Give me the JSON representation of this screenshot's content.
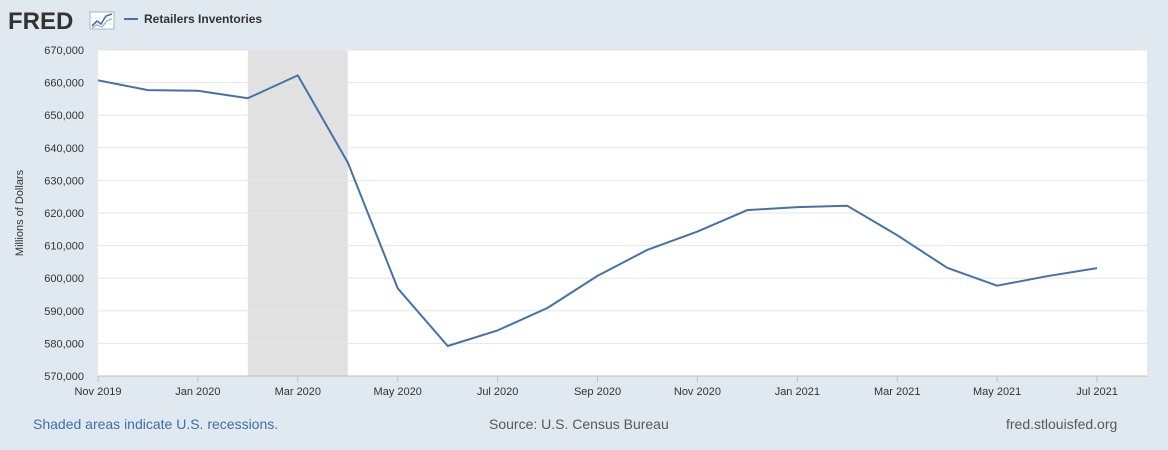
{
  "header": {
    "logo_text": "FRED",
    "legend_label": "Retailers Inventories"
  },
  "footer": {
    "recession_note": "Shaded areas indicate U.S. recessions.",
    "source": "Source: U.S. Census Bureau",
    "site": "fred.stlouisfed.org"
  },
  "colors": {
    "series": "#4572a7",
    "recession": "#e1e1e1",
    "background": "#e1e9f0",
    "plot_bg": "#ffffff",
    "grid": "#e6e6e6"
  },
  "chart_data": {
    "type": "line",
    "title": "",
    "xlabel": "",
    "ylabel": "Millions of Dollars",
    "ylim": [
      570000,
      670000
    ],
    "y_ticks": [
      570000,
      580000,
      590000,
      600000,
      610000,
      620000,
      630000,
      640000,
      650000,
      660000,
      670000
    ],
    "y_tick_labels": [
      "570,000",
      "580,000",
      "590,000",
      "600,000",
      "610,000",
      "620,000",
      "630,000",
      "640,000",
      "650,000",
      "660,000",
      "670,000"
    ],
    "x_ticks": [
      "2019-11",
      "2020-01",
      "2020-03",
      "2020-05",
      "2020-07",
      "2020-09",
      "2020-11",
      "2021-01",
      "2021-03",
      "2021-05",
      "2021-07"
    ],
    "x_tick_labels": [
      "Nov 2019",
      "Jan 2020",
      "Mar 2020",
      "May 2020",
      "Jul 2020",
      "Sep 2020",
      "Nov 2020",
      "Jan 2021",
      "Mar 2021",
      "May 2021",
      "Jul 2021"
    ],
    "recessions": [
      {
        "start": "2020-02",
        "end": "2020-04"
      }
    ],
    "grid": true,
    "legend": "top-left",
    "series": [
      {
        "name": "Retailers Inventories",
        "x": [
          "2019-11",
          "2019-12",
          "2020-01",
          "2020-02",
          "2020-03",
          "2020-04",
          "2020-05",
          "2020-06",
          "2020-07",
          "2020-08",
          "2020-09",
          "2020-10",
          "2020-11",
          "2020-12",
          "2021-01",
          "2021-02",
          "2021-03",
          "2021-04",
          "2021-05",
          "2021-06",
          "2021-07"
        ],
        "values": [
          660700,
          657700,
          657500,
          655200,
          662200,
          635500,
          596900,
          579200,
          584000,
          590900,
          600700,
          608700,
          614300,
          620900,
          621800,
          622200,
          613200,
          603200,
          597700,
          600600,
          603100
        ]
      }
    ]
  }
}
